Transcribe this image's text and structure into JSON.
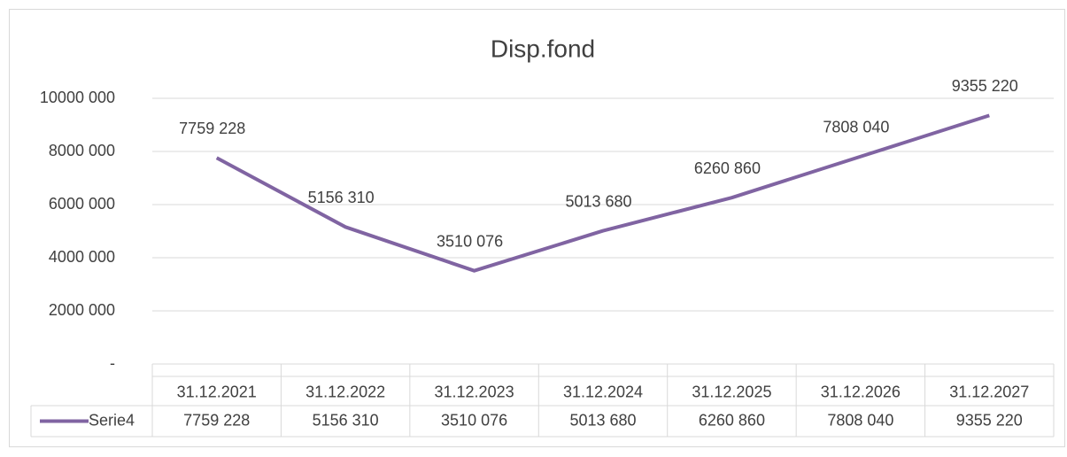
{
  "chart_data": {
    "type": "line",
    "title": "Disp.fond",
    "categories": [
      "31.12.2021",
      "31.12.2022",
      "31.12.2023",
      "31.12.2024",
      "31.12.2025",
      "31.12.2026",
      "31.12.2027"
    ],
    "series": [
      {
        "name": "Serie4",
        "color": "#8064a2",
        "values": [
          7759228,
          5156310,
          3510076,
          5013680,
          6260860,
          7808040,
          9355220
        ],
        "value_labels": [
          "7759 228",
          "5156 310",
          "3510 076",
          "5013 680",
          "6260 860",
          "7808 040",
          "9355 220"
        ]
      }
    ],
    "ylim": [
      0,
      10000000
    ],
    "yticks": [
      {
        "value": 0,
        "label": "-"
      },
      {
        "value": 2000000,
        "label": "2000 000"
      },
      {
        "value": 4000000,
        "label": "4000 000"
      },
      {
        "value": 6000000,
        "label": "6000 000"
      },
      {
        "value": 8000000,
        "label": "8000 000"
      },
      {
        "value": 10000000,
        "label": "10000 000"
      }
    ],
    "grid": true,
    "data_table": true
  }
}
